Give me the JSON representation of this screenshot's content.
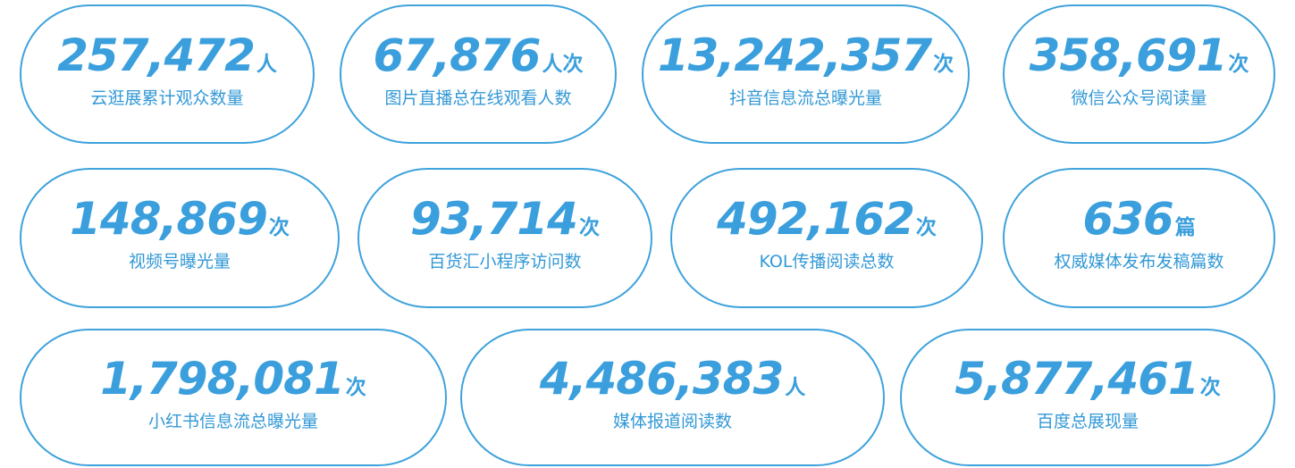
{
  "stats": [
    {
      "value": "257,472",
      "unit": "人",
      "label": "云逛展累计观众数量"
    },
    {
      "value": "67,876",
      "unit": "人次",
      "label": "图片直播总在线观看人数"
    },
    {
      "value": "13,242,357",
      "unit": "次",
      "label": "抖音信息流总曝光量"
    },
    {
      "value": "358,691",
      "unit": "次",
      "label": "微信公众号阅读量"
    },
    {
      "value": "148,869",
      "unit": "次",
      "label": "视频号曝光量"
    },
    {
      "value": "93,714",
      "unit": "次",
      "label": "百货汇小程序访问数"
    },
    {
      "value": "492,162",
      "unit": "次",
      "label": "KOL传播阅读总数"
    },
    {
      "value": "636",
      "unit": "篇",
      "label": "权威媒体发布发稿篇数"
    },
    {
      "value": "1,798,081",
      "unit": "次",
      "label": "小红书信息流总曝光量"
    },
    {
      "value": "4,486,383",
      "unit": "人",
      "label": "媒体报道阅读数"
    },
    {
      "value": "5,877,461",
      "unit": "次",
      "label": "百度总展现量"
    }
  ]
}
